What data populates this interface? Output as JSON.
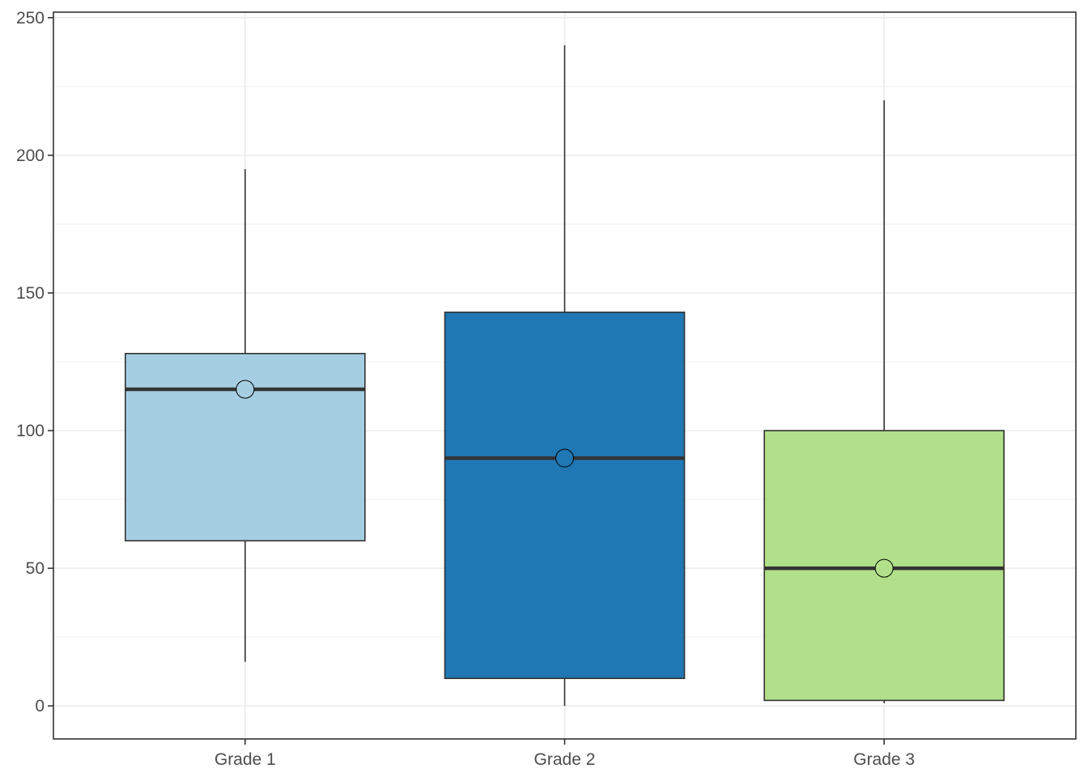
{
  "chart_data": {
    "type": "boxplot",
    "title": "",
    "xlabel": "",
    "ylabel": "",
    "categories": [
      "Grade 1",
      "Grade 2",
      "Grade 3"
    ],
    "ylim": [
      -12,
      252
    ],
    "y_ticks": [
      0,
      50,
      100,
      150,
      200,
      250
    ],
    "y_tick_labels": [
      "0",
      "50",
      "100",
      "150",
      "200",
      "250"
    ],
    "grid": true,
    "legend": "none",
    "boxes": [
      {
        "category": "Grade 1",
        "min": 16,
        "q1": 60,
        "median": 115,
        "q3": 128,
        "max": 195,
        "mean_point": 115,
        "color": "#a6cee3"
      },
      {
        "category": "Grade 2",
        "min": 0,
        "q1": 10,
        "median": 90,
        "q3": 143,
        "max": 240,
        "mean_point": 90,
        "color": "#1f78b4"
      },
      {
        "category": "Grade 3",
        "min": 1,
        "q1": 2,
        "median": 50,
        "q3": 100,
        "max": 220,
        "mean_point": 50,
        "color": "#b2df8a"
      }
    ],
    "colors": {
      "grid": "#ebebeb",
      "outline": "#333333",
      "axis": "#333333"
    }
  }
}
